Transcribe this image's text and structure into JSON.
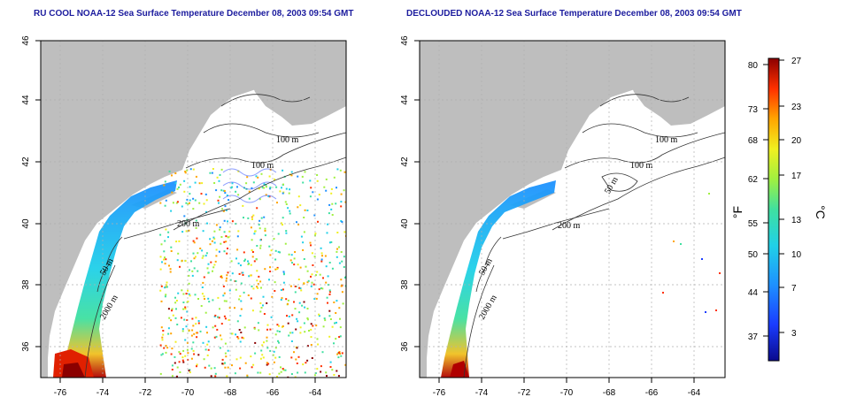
{
  "panels": [
    {
      "title": "RU COOL NOAA-12 Sea Surface Temperature December 08, 2003 09:54 GMT",
      "contour_labels": [
        "100 m",
        "100 m",
        "200 m",
        "50 m",
        "2000 m"
      ]
    },
    {
      "title": "DECLOUDED NOAA-12 Sea Surface Temperature December 08, 2003 09:54 GMT",
      "contour_labels": [
        "100 m",
        "100 m",
        "50 m",
        "200 m",
        "50 m",
        "2000 m"
      ]
    }
  ],
  "axes": {
    "x_ticks": [
      "-76",
      "-74",
      "-72",
      "-70",
      "-68",
      "-66",
      "-64"
    ],
    "y_ticks": [
      "46",
      "44",
      "42",
      "40",
      "38",
      "36"
    ]
  },
  "colorbar": {
    "fahrenheit_ticks": [
      "80",
      "73",
      "68",
      "62",
      "55",
      "50",
      "44",
      "37"
    ],
    "celsius_ticks": [
      "27",
      "23",
      "20",
      "17",
      "13",
      "10",
      "7",
      "3"
    ],
    "left_unit": "°F",
    "right_unit": "°C",
    "colors": [
      "#0a0a8c",
      "#1a3cff",
      "#1e90ff",
      "#20d0e8",
      "#3fe0a0",
      "#a0f040",
      "#f0f020",
      "#ffa500",
      "#ff3000",
      "#8b0000"
    ]
  },
  "colors": {
    "land": "#bebebe",
    "title": "#1c1c9e",
    "grid": "#b0b0b0"
  }
}
